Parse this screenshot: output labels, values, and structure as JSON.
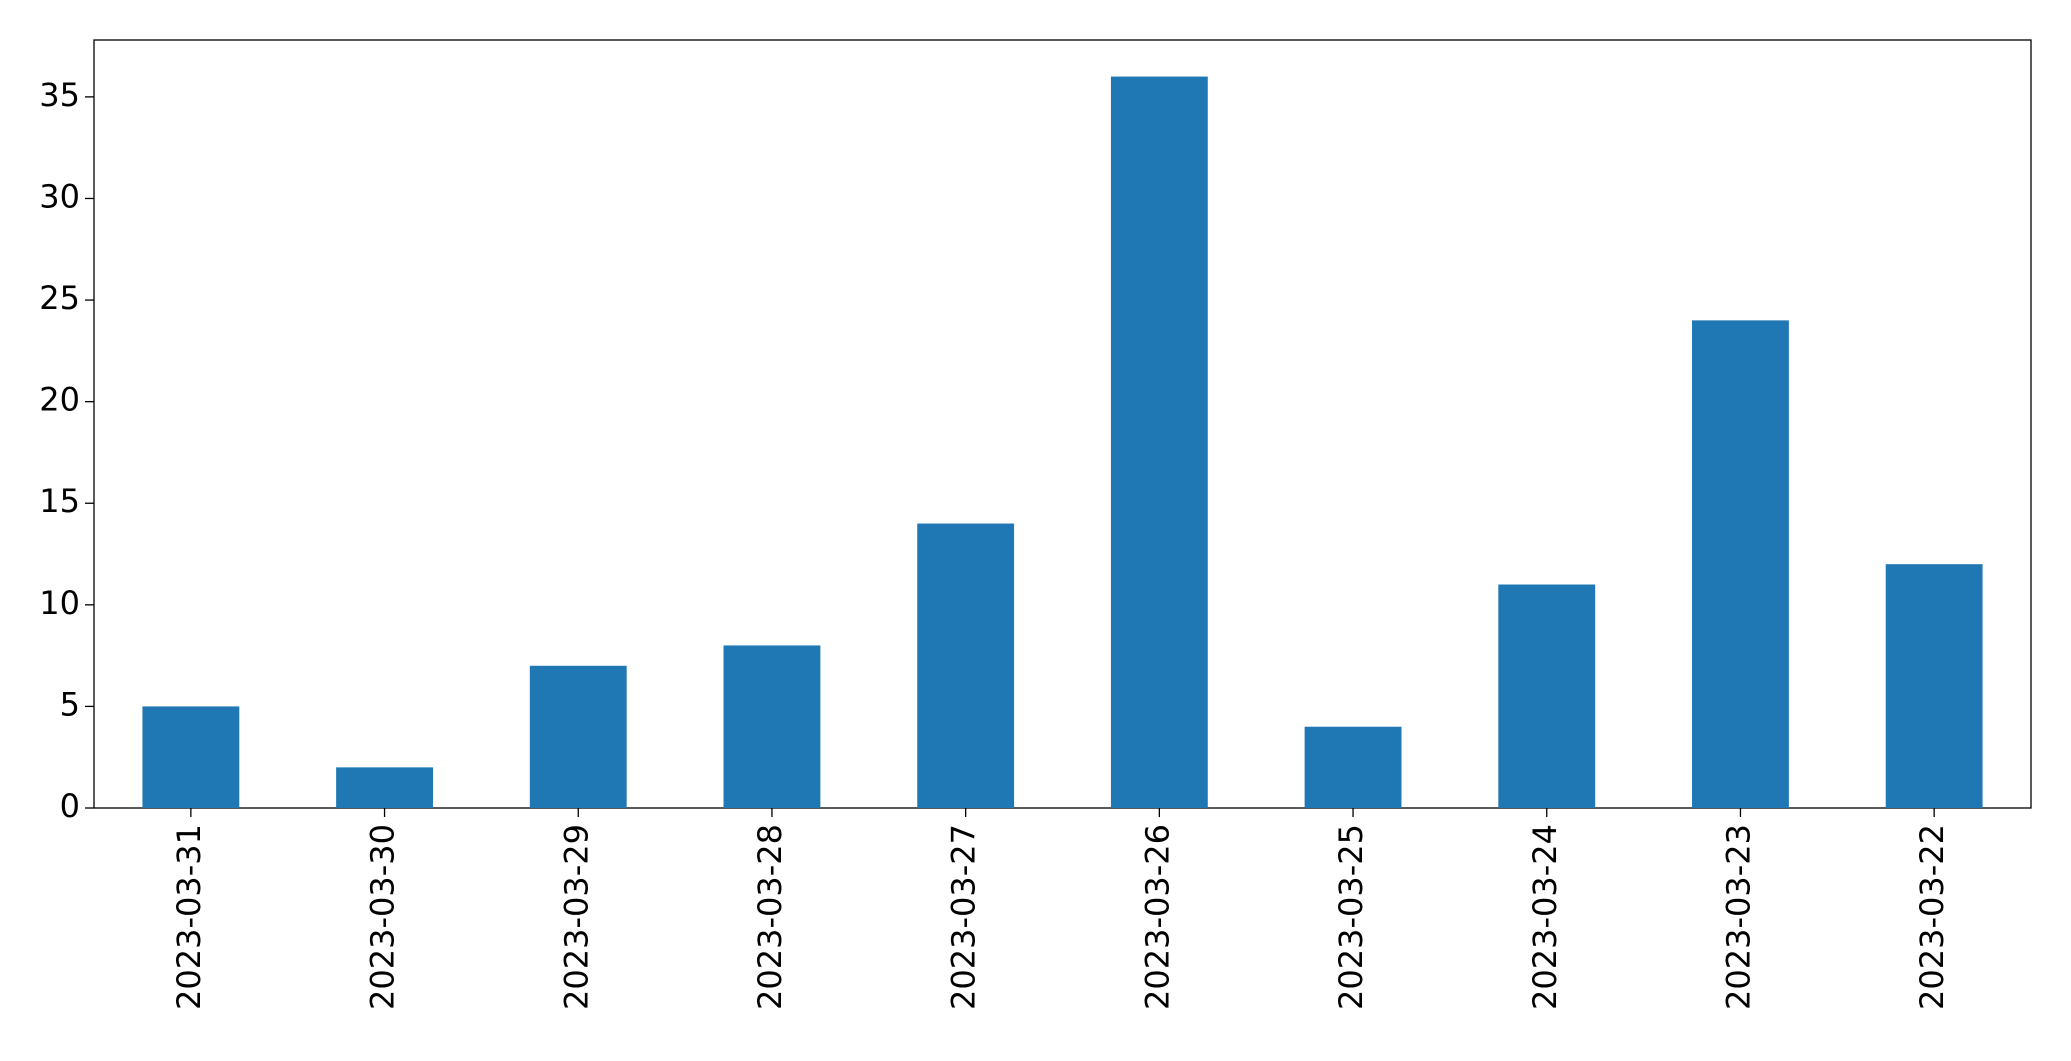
{
  "chart_data": {
    "type": "bar",
    "categories": [
      "2023-03-31",
      "2023-03-30",
      "2023-03-29",
      "2023-03-28",
      "2023-03-27",
      "2023-03-26",
      "2023-03-25",
      "2023-03-24",
      "2023-03-23",
      "2023-03-22"
    ],
    "values": [
      5,
      2,
      7,
      8,
      14,
      36,
      4,
      11,
      24,
      12
    ],
    "color": "#1f77b4",
    "ylim": [
      0,
      37.8
    ],
    "yticks": [
      0,
      5,
      10,
      15,
      20,
      25,
      30,
      35
    ],
    "grid": false
  }
}
